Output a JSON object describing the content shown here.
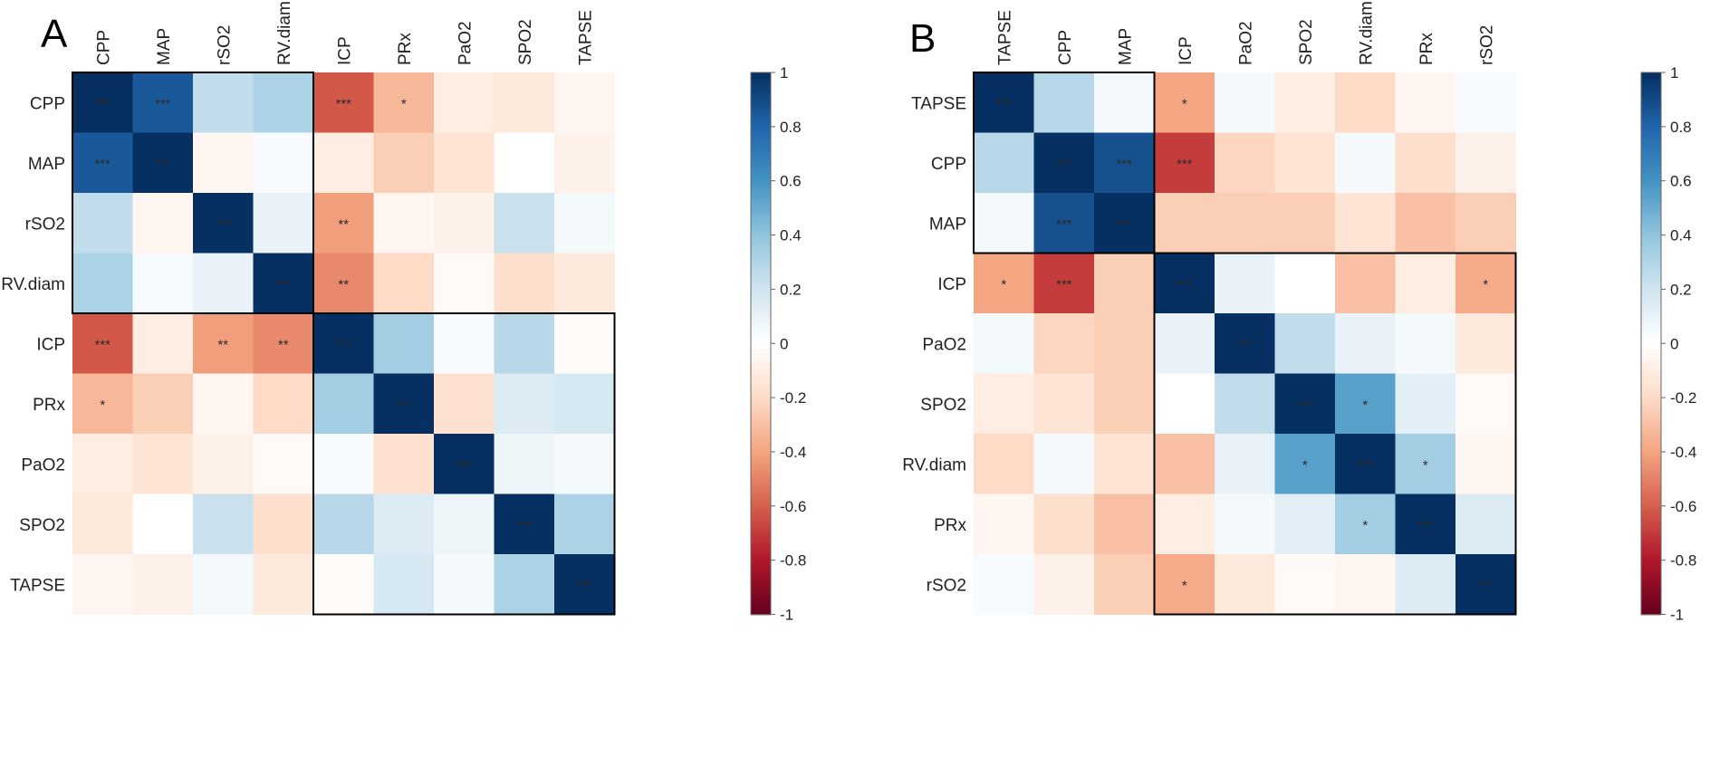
{
  "chart_data": [
    {
      "type": "heatmap",
      "panel_label": "A",
      "labels": [
        "CPP",
        "MAP",
        "rSO2",
        "RV.diam",
        "ICP",
        "PRx",
        "PaO2",
        "SPO2",
        "TAPSE"
      ],
      "values": [
        [
          1.0,
          0.85,
          0.25,
          0.32,
          -0.62,
          -0.33,
          -0.1,
          -0.12,
          -0.05
        ],
        [
          0.85,
          1.0,
          -0.05,
          0.03,
          -0.1,
          -0.25,
          -0.15,
          0.0,
          -0.08
        ],
        [
          0.25,
          -0.05,
          1.0,
          0.1,
          -0.42,
          -0.05,
          -0.08,
          0.22,
          0.05
        ],
        [
          0.32,
          0.03,
          0.1,
          1.0,
          -0.48,
          -0.2,
          -0.03,
          -0.18,
          -0.12
        ],
        [
          -0.62,
          -0.1,
          -0.42,
          -0.48,
          1.0,
          0.35,
          0.03,
          0.28,
          -0.02
        ],
        [
          -0.33,
          -0.25,
          -0.05,
          -0.2,
          0.35,
          1.0,
          -0.17,
          0.15,
          0.18
        ],
        [
          -0.1,
          -0.15,
          -0.08,
          -0.03,
          0.03,
          -0.17,
          1.0,
          0.08,
          0.05
        ],
        [
          -0.12,
          0.0,
          0.22,
          -0.18,
          0.28,
          0.15,
          0.08,
          1.0,
          0.32
        ],
        [
          -0.05,
          -0.08,
          0.05,
          -0.12,
          -0.02,
          0.18,
          0.05,
          0.32,
          1.0
        ]
      ],
      "significance": [
        [
          "***",
          "***",
          "",
          "",
          "***",
          "*",
          "",
          "",
          ""
        ],
        [
          "***",
          "***",
          "",
          "",
          "",
          "",
          "",
          "",
          ""
        ],
        [
          "",
          "",
          "***",
          "",
          "**",
          "",
          "",
          "",
          ""
        ],
        [
          "",
          "",
          "",
          "***",
          "**",
          "",
          "",
          "",
          ""
        ],
        [
          "***",
          "",
          "**",
          "**",
          "***",
          "",
          "",
          "",
          ""
        ],
        [
          "*",
          "",
          "",
          "",
          "",
          "***",
          "",
          "",
          ""
        ],
        [
          "",
          "",
          "",
          "",
          "",
          "",
          "***",
          "",
          ""
        ],
        [
          "",
          "",
          "",
          "",
          "",
          "",
          "",
          "***",
          ""
        ],
        [
          "",
          "",
          "",
          "",
          "",
          "",
          "",
          "",
          "***"
        ]
      ],
      "colorbar_ticks": [
        "1",
        "0.8",
        "0.6",
        "0.4",
        "0.2",
        "0",
        "-0.2",
        "-0.4",
        "-0.6",
        "-0.8",
        "-1"
      ],
      "color_range": [
        -1,
        1
      ]
    },
    {
      "type": "heatmap",
      "panel_label": "B",
      "labels": [
        "TAPSE",
        "CPP",
        "MAP",
        "ICP",
        "PaO2",
        "SPO2",
        "RV.diam",
        "PRx",
        "rSO2"
      ],
      "values": [
        [
          1.0,
          0.28,
          0.05,
          -0.4,
          0.05,
          -0.1,
          -0.2,
          -0.05,
          0.03
        ],
        [
          0.28,
          1.0,
          0.88,
          -0.7,
          -0.22,
          -0.15,
          0.05,
          -0.18,
          -0.08
        ],
        [
          0.05,
          0.88,
          1.0,
          -0.25,
          -0.25,
          -0.25,
          -0.15,
          -0.3,
          -0.25
        ],
        [
          -0.4,
          -0.7,
          -0.25,
          1.0,
          0.1,
          0.0,
          -0.3,
          -0.1,
          -0.38
        ],
        [
          0.05,
          -0.22,
          -0.25,
          0.1,
          1.0,
          0.25,
          0.1,
          0.05,
          -0.12
        ],
        [
          -0.1,
          -0.15,
          -0.25,
          0.0,
          0.25,
          1.0,
          0.55,
          0.12,
          -0.03
        ],
        [
          -0.2,
          0.05,
          -0.15,
          -0.3,
          0.1,
          0.55,
          1.0,
          0.35,
          -0.05
        ],
        [
          -0.05,
          -0.18,
          -0.3,
          -0.1,
          0.05,
          0.12,
          0.35,
          1.0,
          0.15
        ],
        [
          0.03,
          -0.08,
          -0.25,
          -0.38,
          -0.12,
          -0.03,
          -0.05,
          0.15,
          1.0
        ]
      ],
      "significance": [
        [
          "***",
          "",
          "",
          "*",
          "",
          "",
          "",
          "",
          ""
        ],
        [
          "",
          "***",
          "***",
          "***",
          "",
          "",
          "",
          "",
          ""
        ],
        [
          "",
          "***",
          "***",
          "",
          "",
          "",
          "",
          "",
          ""
        ],
        [
          "*",
          "***",
          "",
          "***",
          "",
          "",
          "",
          "",
          "*"
        ],
        [
          "",
          "",
          "",
          "",
          "***",
          "",
          "",
          "",
          ""
        ],
        [
          "",
          "",
          "",
          "",
          "",
          "***",
          "*",
          "",
          ""
        ],
        [
          "",
          "",
          "",
          "",
          "",
          "*",
          "***",
          "*",
          ""
        ],
        [
          "",
          "",
          "",
          "",
          "",
          "",
          "*",
          "***",
          ""
        ],
        [
          "",
          "",
          "",
          "*",
          "",
          "",
          "",
          "",
          "***"
        ]
      ],
      "colorbar_ticks": [
        "1",
        "0.8",
        "0.6",
        "0.4",
        "0.2",
        "0",
        "-0.2",
        "-0.4",
        "-0.6",
        "-0.8",
        "-1"
      ],
      "color_range": [
        -1,
        1
      ]
    }
  ]
}
